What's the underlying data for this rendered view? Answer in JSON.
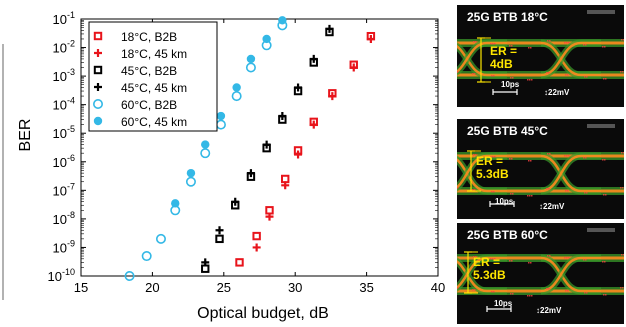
{
  "chart_data": {
    "type": "scatter",
    "xlabel": "Optical budget, dB",
    "ylabel": "BER",
    "xlim": [
      15,
      40
    ],
    "x_ticks": [
      "15",
      "20",
      "25",
      "30",
      "35",
      "40"
    ],
    "ylim_log10": [
      -10,
      -1
    ],
    "y_ticks": [
      {
        "base": "10",
        "exp": "-1"
      },
      {
        "base": "10",
        "exp": "-2"
      },
      {
        "base": "10",
        "exp": "-3"
      },
      {
        "base": "10",
        "exp": "-4"
      },
      {
        "base": "10",
        "exp": "-5"
      },
      {
        "base": "10",
        "exp": "-6"
      },
      {
        "base": "10",
        "exp": "-7"
      },
      {
        "base": "10",
        "exp": "-8"
      },
      {
        "base": "10",
        "exp": "-9"
      },
      {
        "base": "10",
        "exp": "-10"
      }
    ],
    "legend_position": "top-left",
    "series": [
      {
        "name": "18°C, B2B",
        "color": "#e8141b",
        "marker": "open-square",
        "x": [
          26.1,
          27.3,
          28.2,
          29.3,
          30.2,
          31.3,
          32.6,
          34.1,
          35.3,
          36.3,
          37.4
        ],
        "y": [
          3e-10,
          2.5e-09,
          2e-08,
          2.5e-07,
          2.5e-06,
          2.5e-05,
          0.00025,
          0.0025,
          0.025,
          0.12,
          0.35
        ]
      },
      {
        "name": "18°C, 45 km",
        "color": "#e8141b",
        "marker": "plus",
        "x": [
          27.3,
          28.2,
          29.3,
          30.2,
          31.3,
          32.6,
          34.1,
          35.3
        ],
        "y": [
          1e-09,
          1.2e-08,
          1.5e-07,
          1.8e-06,
          2e-05,
          0.0002,
          0.002,
          0.02
        ]
      },
      {
        "name": "45°C, B2B",
        "color": "#000000",
        "marker": "open-square",
        "x": [
          23.7,
          24.7,
          25.8,
          26.9,
          28.0,
          29.1,
          30.2,
          31.3,
          32.4,
          33.4,
          34.5
        ],
        "y": [
          1.8e-10,
          2e-09,
          3e-08,
          3e-07,
          3e-06,
          3e-05,
          0.0003,
          0.003,
          0.035,
          0.15,
          0.5
        ]
      },
      {
        "name": "45°C, 45 km",
        "color": "#000000",
        "marker": "plus",
        "x": [
          23.7,
          24.7,
          25.8,
          26.9,
          28.0,
          29.1,
          30.2,
          31.3,
          32.4,
          33.4,
          34.5
        ],
        "y": [
          3e-10,
          4e-09,
          4e-08,
          4e-07,
          4e-06,
          4e-05,
          0.0004,
          0.004,
          0.045,
          0.2,
          0.65
        ]
      },
      {
        "name": "60°C, B2B",
        "color": "#33b8e6",
        "marker": "open-circle",
        "x": [
          18.4,
          19.6,
          20.6,
          21.6,
          22.7,
          23.7,
          24.8,
          25.9,
          26.9,
          28.0,
          29.1,
          30.1,
          31.2
        ],
        "y": [
          1e-10,
          5e-10,
          2e-09,
          2e-08,
          2e-07,
          2e-06,
          2e-05,
          0.0002,
          0.002,
          0.012,
          0.06,
          0.18,
          0.5
        ]
      },
      {
        "name": "60°C, 45 km",
        "color": "#33b8e6",
        "marker": "filled-circle",
        "x": [
          21.6,
          22.7,
          23.7,
          24.8,
          25.9,
          26.9,
          28.0,
          29.1,
          30.1,
          31.2
        ],
        "y": [
          3.5e-08,
          4e-07,
          4e-06,
          4e-05,
          0.0004,
          0.004,
          0.02,
          0.09,
          0.25,
          0.58
        ]
      }
    ]
  },
  "eye_diagrams": [
    {
      "title": "25G BTB 18°C",
      "er": "ER =\n4dB",
      "time_scale": "10ps",
      "amp_scale": "22mV"
    },
    {
      "title": "25G  BTB  45°C",
      "er": "ER =\n5.3dB",
      "time_scale": "10ps",
      "amp_scale": "22mV"
    },
    {
      "title": "25G  BTB  60°C",
      "er": "ER =\n5.3dB",
      "time_scale": "10ps",
      "amp_scale": "22mV"
    }
  ],
  "colors": {
    "red": "#e8141b",
    "black": "#000000",
    "cyan": "#33b8e6",
    "er_yellow": "#ffe600",
    "eye_green": "#3a9a2a",
    "eye_orange": "#ff8a1e"
  }
}
